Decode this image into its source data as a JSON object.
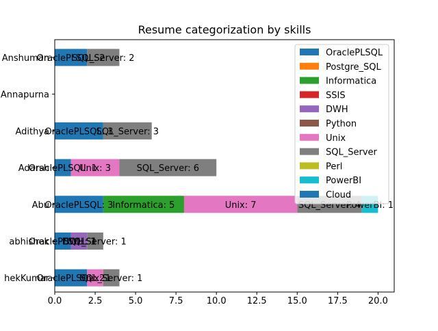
{
  "chart_data": {
    "type": "bar",
    "orientation": "horizontal",
    "stacked": true,
    "title": "Resume categorization by skills",
    "xlabel": "",
    "ylabel": "",
    "xlim": [
      0,
      21
    ],
    "x_ticks": [
      "0.0",
      "2.5",
      "5.0",
      "7.5",
      "10.0",
      "12.5",
      "15.0",
      "17.5",
      "20.0"
    ],
    "x_tick_values": [
      0,
      2.5,
      5,
      7.5,
      10,
      12.5,
      15,
      17.5,
      20
    ],
    "grid": false,
    "legend_position": "top-right",
    "categories": [
      "Anshuman",
      "Annapurna",
      "Adithya",
      "Adarsh",
      "Abu",
      "abhishek",
      "AbhishekKumar"
    ],
    "category_labels_visible": [
      "Anshuman",
      "Annapurna",
      "Adithya",
      "Adarsh",
      "Abu",
      "abhishek",
      "hekKumar"
    ],
    "series": [
      {
        "name": "OraclePLSQL",
        "color": "#1f77b4",
        "values": [
          2,
          0,
          3,
          1,
          3,
          1,
          2
        ]
      },
      {
        "name": "Postgre_SQL",
        "color": "#ff7f0e",
        "values": [
          0,
          0,
          0,
          0,
          0,
          0,
          0
        ]
      },
      {
        "name": "Informatica",
        "color": "#2ca02c",
        "values": [
          0,
          0,
          0,
          0,
          5,
          0,
          0
        ]
      },
      {
        "name": "SSIS",
        "color": "#d62728",
        "values": [
          0,
          0,
          0,
          0,
          0,
          0,
          0
        ]
      },
      {
        "name": "DWH",
        "color": "#9467bd",
        "values": [
          0,
          0,
          0,
          0,
          0,
          1,
          0
        ]
      },
      {
        "name": "Python",
        "color": "#8c564b",
        "values": [
          0,
          0,
          0,
          0,
          0,
          0,
          0
        ]
      },
      {
        "name": "Unix",
        "color": "#e377c2",
        "values": [
          0,
          0,
          0,
          3,
          7,
          0,
          1
        ]
      },
      {
        "name": "SQL_Server",
        "color": "#7f7f7f",
        "values": [
          2,
          0,
          3,
          6,
          4,
          1,
          1
        ]
      },
      {
        "name": "Perl",
        "color": "#bcbd22",
        "values": [
          0,
          0,
          0,
          0,
          0,
          0,
          0
        ]
      },
      {
        "name": "PowerBI",
        "color": "#17becf",
        "values": [
          0,
          0,
          0,
          0,
          1,
          0,
          0
        ]
      },
      {
        "name": "Cloud",
        "color": "#1f77b4",
        "values": [
          0,
          0,
          0,
          0,
          0,
          0,
          0
        ]
      }
    ]
  }
}
